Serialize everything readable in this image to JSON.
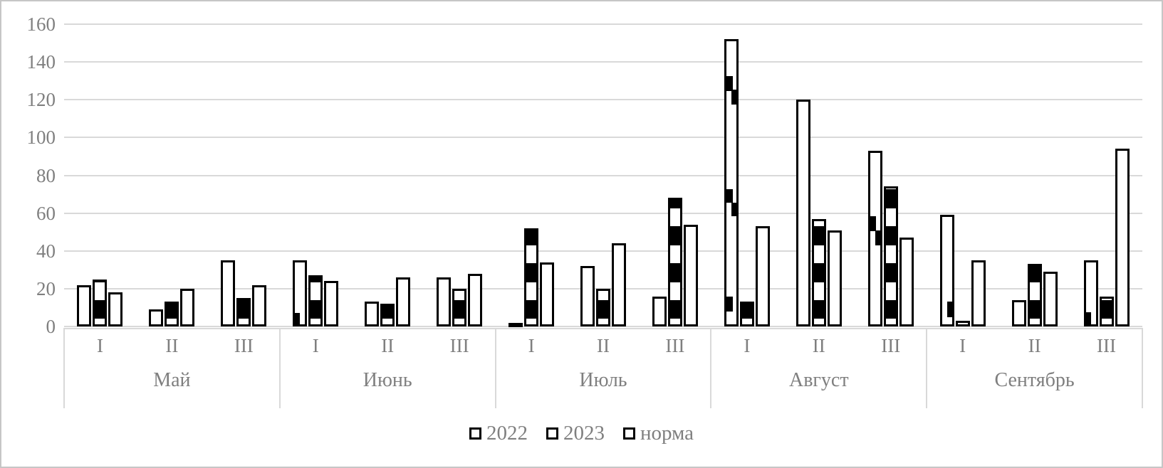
{
  "chart_data": {
    "type": "bar",
    "title": "",
    "xlabel": "",
    "ylabel": "",
    "ylim": [
      0,
      160
    ],
    "yticks": [
      0,
      20,
      40,
      60,
      80,
      100,
      120,
      140,
      160
    ],
    "grid": true,
    "legend_position": "bottom",
    "months": [
      "Май",
      "Июнь",
      "Июль",
      "Август",
      "Сентябрь"
    ],
    "decades": [
      "I",
      "II",
      "III"
    ],
    "series": [
      {
        "name": "2022",
        "style": "plain",
        "values": [
          22,
          9,
          35,
          35,
          13,
          26,
          2,
          32,
          16,
          152,
          120,
          93,
          59,
          14,
          35
        ]
      },
      {
        "name": "2023",
        "style": "striped",
        "values": [
          25,
          13,
          15,
          27,
          12,
          20,
          52,
          20,
          68,
          13,
          57,
          74,
          3,
          33,
          16
        ]
      },
      {
        "name": "норма",
        "style": "plain",
        "values": [
          18,
          20,
          22,
          24,
          26,
          28,
          34,
          44,
          54,
          53,
          51,
          47,
          35,
          29,
          94
        ]
      }
    ],
    "stripe_pattern": {
      "black_band_start": 4,
      "black_band_height": 10,
      "band_period": 19.5
    },
    "pattern_fragments": [
      {
        "category_index": 3,
        "from": 0,
        "to": 6,
        "kind": "sliver"
      },
      {
        "category_index": 9,
        "from": 124.5,
        "to": 132.5,
        "kind": "left"
      },
      {
        "category_index": 9,
        "from": 117.5,
        "to": 125.5,
        "kind": "right"
      },
      {
        "category_index": 9,
        "from": 65.5,
        "to": 72.5,
        "kind": "left"
      },
      {
        "category_index": 9,
        "from": 58.5,
        "to": 65.5,
        "kind": "right"
      },
      {
        "category_index": 9,
        "from": 8,
        "to": 16,
        "kind": "left"
      },
      {
        "category_index": 11,
        "from": 50.5,
        "to": 58.5,
        "kind": "left"
      },
      {
        "category_index": 11,
        "from": 43,
        "to": 51,
        "kind": "right"
      },
      {
        "category_index": 12,
        "from": 5,
        "to": 13,
        "kind": "right"
      },
      {
        "category_index": 14,
        "from": 0,
        "to": 6.5,
        "kind": "sliver"
      }
    ]
  },
  "legend": {
    "items": [
      {
        "label": "2022"
      },
      {
        "label": "2023"
      },
      {
        "label": "норма"
      }
    ]
  },
  "colors": {
    "axis_text": "#7f7f7f",
    "gridline": "#d9d9d9",
    "bar_border": "#000000",
    "bar_fill": "#ffffff",
    "pattern_black": "#000000",
    "frame": "#c6c6c6",
    "background": "#ffffff"
  }
}
